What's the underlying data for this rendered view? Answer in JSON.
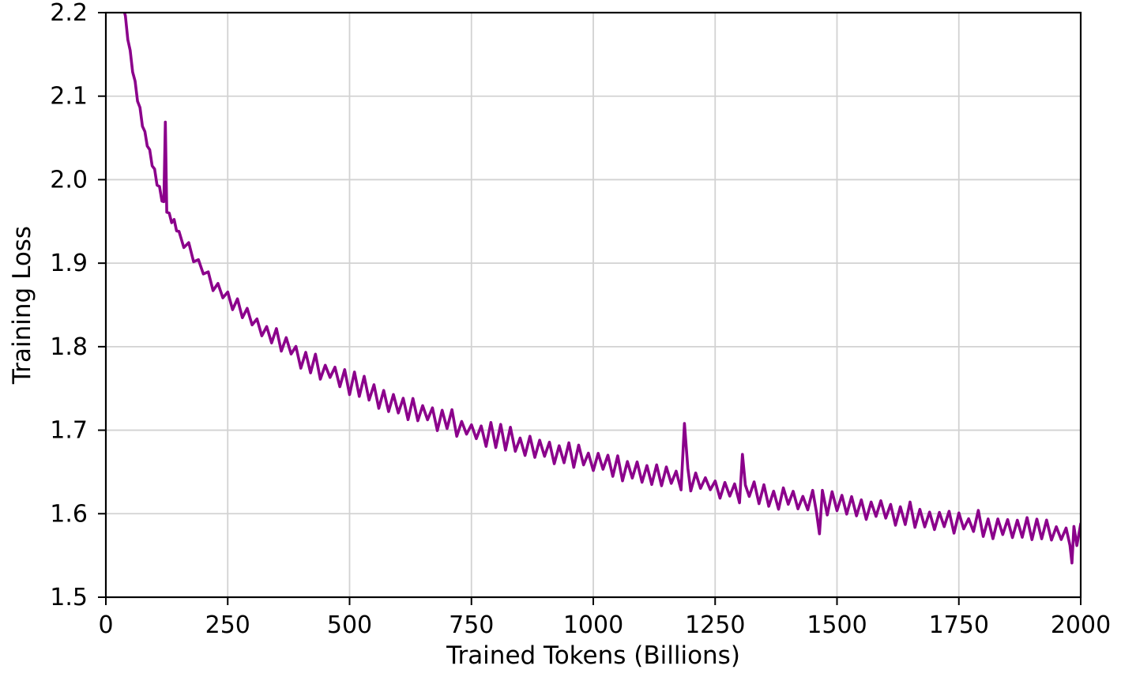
{
  "figure": {
    "background": "#ffffff"
  },
  "chart_data": {
    "type": "line",
    "title": "",
    "xlabel": "Trained Tokens (Billions)",
    "ylabel": "Training Loss",
    "xlim": [
      0,
      2000
    ],
    "ylim": [
      1.5,
      2.2
    ],
    "xticks": [
      0,
      250,
      500,
      750,
      1000,
      1250,
      1500,
      1750,
      2000
    ],
    "xtick_labels": [
      "0",
      "250",
      "500",
      "750",
      "1000",
      "1250",
      "1500",
      "1750",
      "2000"
    ],
    "yticks": [
      1.5,
      1.6,
      1.7,
      1.8,
      1.9,
      2.0,
      2.1,
      2.2
    ],
    "ytick_labels": [
      "1.5",
      "1.6",
      "1.7",
      "1.8",
      "1.9",
      "2.0",
      "2.1",
      "2.2"
    ],
    "grid": true,
    "grid_color": "#d2d2d2",
    "axis_color": "#000000",
    "line_color": "#8b008b",
    "line_width": 3.6,
    "legend": false,
    "series": [
      {
        "name": "training loss",
        "x": [
          25,
          30,
          35,
          40,
          45,
          50,
          55,
          60,
          65,
          70,
          75,
          80,
          85,
          90,
          95,
          100,
          105,
          110,
          115,
          119,
          122,
          125,
          130,
          135,
          140,
          145,
          150,
          160,
          170,
          180,
          190,
          200,
          210,
          220,
          230,
          240,
          250,
          260,
          270,
          280,
          290,
          300,
          310,
          320,
          330,
          340,
          350,
          360,
          370,
          380,
          390,
          400,
          410,
          420,
          430,
          440,
          450,
          460,
          470,
          480,
          490,
          500,
          510,
          520,
          530,
          540,
          550,
          560,
          570,
          580,
          590,
          600,
          610,
          620,
          630,
          640,
          650,
          660,
          670,
          680,
          690,
          700,
          710,
          720,
          730,
          740,
          750,
          760,
          770,
          780,
          790,
          800,
          810,
          820,
          830,
          840,
          850,
          860,
          870,
          880,
          890,
          900,
          910,
          920,
          930,
          940,
          950,
          960,
          970,
          980,
          990,
          1000,
          1010,
          1020,
          1030,
          1040,
          1050,
          1060,
          1070,
          1080,
          1090,
          1100,
          1110,
          1120,
          1130,
          1140,
          1150,
          1160,
          1170,
          1180,
          1187,
          1194,
          1200,
          1210,
          1220,
          1230,
          1240,
          1250,
          1260,
          1270,
          1280,
          1290,
          1300,
          1306,
          1312,
          1320,
          1330,
          1340,
          1350,
          1360,
          1370,
          1380,
          1390,
          1400,
          1410,
          1420,
          1430,
          1440,
          1450,
          1458,
          1464,
          1470,
          1480,
          1490,
          1500,
          1510,
          1520,
          1530,
          1540,
          1550,
          1560,
          1570,
          1580,
          1590,
          1600,
          1610,
          1620,
          1630,
          1640,
          1650,
          1660,
          1670,
          1680,
          1690,
          1700,
          1710,
          1720,
          1730,
          1740,
          1750,
          1760,
          1770,
          1780,
          1790,
          1800,
          1810,
          1820,
          1830,
          1840,
          1850,
          1860,
          1870,
          1880,
          1890,
          1900,
          1910,
          1920,
          1930,
          1940,
          1950,
          1960,
          1970,
          1978,
          1982,
          1986,
          1992,
          2000
        ],
        "y": [
          2.245,
          2.228,
          2.21,
          2.192,
          2.171,
          2.152,
          2.133,
          2.116,
          2.099,
          2.084,
          2.069,
          2.056,
          2.043,
          2.031,
          2.019,
          2.008,
          1.997,
          1.987,
          1.978,
          1.97,
          2.069,
          1.963,
          1.958,
          1.952,
          1.947,
          1.941,
          1.936,
          1.926,
          1.916,
          1.908,
          1.9,
          1.892,
          1.884,
          1.877,
          1.871,
          1.864,
          1.858,
          1.852,
          1.847,
          1.841,
          1.836,
          1.831,
          1.826,
          1.822,
          1.817,
          1.813,
          1.809,
          1.804,
          1.8,
          1.797,
          1.793,
          1.789,
          1.786,
          1.782,
          1.779,
          1.775,
          1.772,
          1.769,
          1.766,
          1.763,
          1.76,
          1.757,
          1.754,
          1.752,
          1.749,
          1.747,
          1.744,
          1.742,
          1.739,
          1.737,
          1.734,
          1.732,
          1.73,
          1.727,
          1.725,
          1.723,
          1.721,
          1.719,
          1.717,
          1.715,
          1.713,
          1.711,
          1.709,
          1.707,
          1.705,
          1.703,
          1.701,
          1.7,
          1.698,
          1.696,
          1.694,
          1.693,
          1.691,
          1.69,
          1.688,
          1.687,
          1.685,
          1.683,
          1.682,
          1.68,
          1.679,
          1.677,
          1.676,
          1.674,
          1.673,
          1.671,
          1.67,
          1.668,
          1.667,
          1.666,
          1.664,
          1.663,
          1.662,
          1.66,
          1.659,
          1.657,
          1.656,
          1.655,
          1.654,
          1.652,
          1.651,
          1.65,
          1.649,
          1.647,
          1.646,
          1.645,
          1.644,
          1.643,
          1.642,
          1.641,
          1.708,
          1.64,
          1.639,
          1.638,
          1.637,
          1.636,
          1.635,
          1.634,
          1.633,
          1.632,
          1.631,
          1.629,
          1.628,
          1.671,
          1.627,
          1.626,
          1.625,
          1.625,
          1.624,
          1.623,
          1.622,
          1.621,
          1.62,
          1.619,
          1.618,
          1.617,
          1.616,
          1.615,
          1.614,
          1.613,
          1.576,
          1.612,
          1.612,
          1.611,
          1.61,
          1.609,
          1.608,
          1.607,
          1.607,
          1.606,
          1.605,
          1.604,
          1.603,
          1.603,
          1.602,
          1.601,
          1.6,
          1.599,
          1.599,
          1.598,
          1.597,
          1.596,
          1.596,
          1.595,
          1.594,
          1.593,
          1.593,
          1.592,
          1.591,
          1.591,
          1.59,
          1.589,
          1.588,
          1.588,
          1.587,
          1.586,
          1.586,
          1.585,
          1.584,
          1.583,
          1.583,
          1.582,
          1.581,
          1.581,
          1.58,
          1.579,
          1.579,
          1.578,
          1.577,
          1.577,
          1.576,
          1.575,
          1.575,
          1.541,
          1.574,
          1.574,
          1.573
        ]
      }
    ],
    "spikes": [
      {
        "x": 122,
        "y": 2.069
      },
      {
        "x": 1187,
        "y": 1.708
      },
      {
        "x": 1306,
        "y": 1.671
      }
    ],
    "dips": [
      {
        "x": 1464,
        "y": 1.576
      },
      {
        "x": 1982,
        "y": 1.541
      }
    ],
    "noise": {
      "amplitude": 0.016,
      "seed": 9,
      "ramp": [
        {
          "until": 150,
          "scale": 0.35
        },
        {
          "until": 320,
          "scale": 0.65
        },
        {
          "until": 2000,
          "scale": 1.0
        }
      ]
    }
  }
}
